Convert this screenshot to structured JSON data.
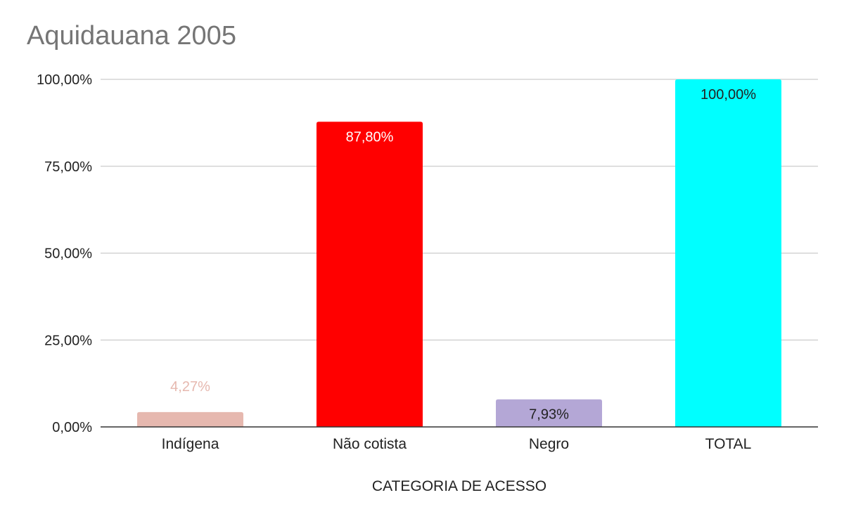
{
  "chart_data": {
    "type": "bar",
    "title": "Aquidauana 2005",
    "xlabel": "CATEGORIA DE ACESSO",
    "ylabel": "",
    "ylim": [
      0,
      100
    ],
    "yticks": [
      0,
      25,
      50,
      75,
      100
    ],
    "ytick_labels": [
      "0,00%",
      "25,00%",
      "50,00%",
      "75,00%",
      "100,00%"
    ],
    "categories": [
      "Indígena",
      "Não cotista",
      "Negro",
      "TOTAL"
    ],
    "values": [
      4.27,
      87.8,
      7.93,
      100.0
    ],
    "value_labels": [
      "4,27%",
      "87,80%",
      "7,93%",
      "100,00%"
    ],
    "bar_colors": [
      "#e6b8af",
      "#ff0000",
      "#b4a7d6",
      "#00ffff"
    ],
    "label_colors": [
      "#e6b8af",
      "#ffffff",
      "#222222",
      "#222222"
    ],
    "grid": true,
    "legend": "none"
  }
}
